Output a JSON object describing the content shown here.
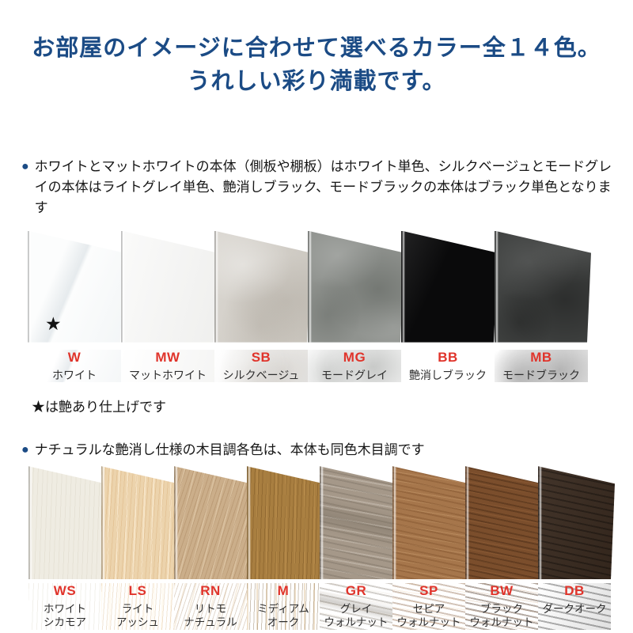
{
  "header": {
    "title_line1": "お部屋のイメージに合わせて選べるカラー全１４色。",
    "title_line2": "うれしい彩り満載です。"
  },
  "colors": {
    "heading_blue": "#1b4b85",
    "bullet_blue": "#1b4b85",
    "code_red": "#e0342b",
    "body_text": "#161616"
  },
  "sections": [
    {
      "bullet": "●",
      "note": "ホワイトとマットホワイトの本体（側板や棚板）はホワイト単色、シルクベージュとモードグレイの本体はライトグレイ単色、艶消しブラック、モードブラックの本体はブラック単色となります",
      "star_note": "★は艶あり仕上げです",
      "swatches": [
        {
          "code": "W",
          "name_lines": [
            "ホワイト"
          ],
          "hex": "#fcfdfd",
          "star": "★"
        },
        {
          "code": "MW",
          "name_lines": [
            "マットホワイト"
          ],
          "hex": "#f5f5f4"
        },
        {
          "code": "SB",
          "name_lines": [
            "シルクベージュ"
          ],
          "hex": "#d4d0c9"
        },
        {
          "code": "MG",
          "name_lines": [
            "モードグレイ"
          ],
          "hex": "#90938f"
        },
        {
          "code": "BB",
          "name_lines": [
            "艶消しブラック"
          ],
          "hex": "#0a0a0b"
        },
        {
          "code": "MB",
          "name_lines": [
            "モードブラック"
          ],
          "hex": "#404241"
        }
      ]
    },
    {
      "bullet": "●",
      "note": "ナチュラルな艶消し仕様の木目調各色は、本体も同色木目調です",
      "swatches": [
        {
          "code": "WS",
          "name_lines": [
            "ホワイト",
            "シカモア"
          ],
          "hex": "#efece2"
        },
        {
          "code": "LS",
          "name_lines": [
            "ライト",
            "アッシュ"
          ],
          "hex": "#ecd3ac"
        },
        {
          "code": "RN",
          "name_lines": [
            "リトモ",
            "ナチュラル"
          ],
          "hex": "#cbae8a"
        },
        {
          "code": "M",
          "name_lines": [
            "ミディアム",
            "オーク"
          ],
          "hex": "#a87e40"
        },
        {
          "code": "GR",
          "name_lines": [
            "グレイ",
            "ウォルナット"
          ],
          "hex": "#a59889"
        },
        {
          "code": "SP",
          "name_lines": [
            "セピア",
            "ウォルナット"
          ],
          "hex": "#a6764b"
        },
        {
          "code": "BW",
          "name_lines": [
            "ブラック",
            "ウォルナット"
          ],
          "hex": "#7b4e2c"
        },
        {
          "code": "DB",
          "name_lines": [
            "ダークオーク"
          ],
          "hex": "#392a1f"
        }
      ]
    }
  ]
}
